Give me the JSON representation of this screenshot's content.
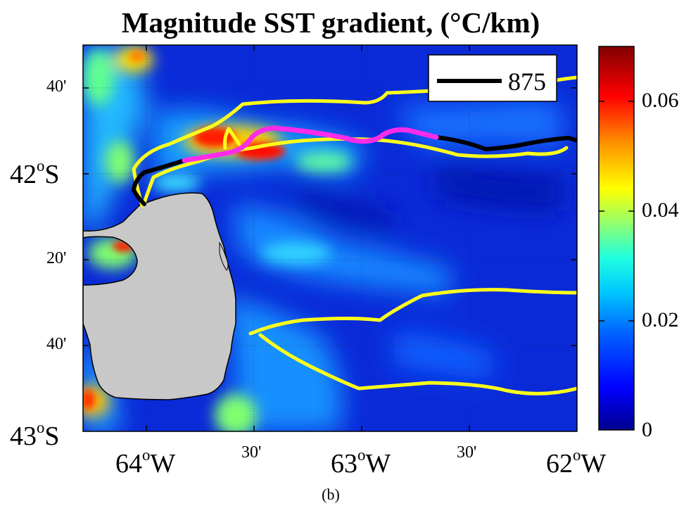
{
  "title": "Magnitude SST gradient, (°C/km)",
  "legend": {
    "label": "875"
  },
  "y_axis": {
    "ticks": [
      {
        "text": "40'",
        "sup": "",
        "unit": "",
        "major": false
      },
      {
        "text": "42",
        "sup": "o",
        "unit": "S",
        "major": true
      },
      {
        "text": "20'",
        "sup": "",
        "unit": "",
        "major": false
      },
      {
        "text": "40'",
        "sup": "",
        "unit": "",
        "major": false
      },
      {
        "text": "43",
        "sup": "o",
        "unit": "S",
        "major": true
      }
    ]
  },
  "x_axis": {
    "ticks": [
      {
        "text": "64",
        "sup": "o",
        "unit": "W",
        "major": true
      },
      {
        "text": "30'",
        "sup": "",
        "unit": "",
        "major": false
      },
      {
        "text": "63",
        "sup": "o",
        "unit": "W",
        "major": true
      },
      {
        "text": "30'",
        "sup": "",
        "unit": "",
        "major": false
      },
      {
        "text": "62",
        "sup": "o",
        "unit": "W",
        "major": true
      }
    ]
  },
  "colorbar": {
    "ticks": [
      "0.06",
      "0.04",
      "0.02",
      "0"
    ],
    "range": [
      0,
      0.07
    ],
    "colormap": [
      "#00008f",
      "#0000ff",
      "#0080ff",
      "#00ffff",
      "#80ff80",
      "#ffff00",
      "#ff8000",
      "#ff0000",
      "#800000"
    ]
  },
  "colors": {
    "ocean_base": "#0a2ad8",
    "land": "#c8c8c8",
    "track_yellow": "#ffff1a",
    "track_black": "#000000",
    "track_magenta": "#ff2bea"
  },
  "panel_label": "(b)"
}
